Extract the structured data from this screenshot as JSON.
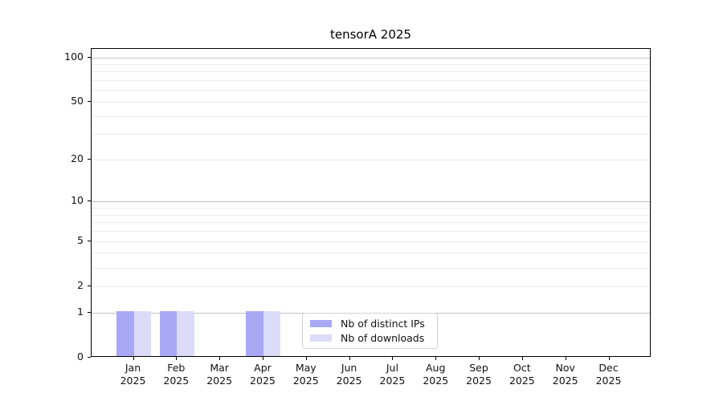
{
  "title": "tensorA 2025",
  "colors": {
    "series_distinct_ips": "#a8a8f5",
    "series_downloads": "#dcdcf8",
    "major_grid": "#c3c3c3",
    "minor_grid": "#ebebeb",
    "axis_frame": "#000000",
    "text": "#111111"
  },
  "chart_data": {
    "type": "bar",
    "title": "tensorA 2025",
    "categories": [
      "Jan",
      "Feb",
      "Mar",
      "Apr",
      "May",
      "Jun",
      "Jul",
      "Aug",
      "Sep",
      "Oct",
      "Nov",
      "Dec"
    ],
    "category_year": "2025",
    "series": [
      {
        "name": "Nb of distinct IPs",
        "color": "#a8a8f5",
        "values": [
          1,
          1,
          0,
          1,
          0,
          0,
          0,
          0,
          0,
          0,
          0,
          0
        ]
      },
      {
        "name": "Nb of downloads",
        "color": "#dcdcf8",
        "values": [
          1,
          1,
          0,
          1,
          0,
          0,
          0,
          0,
          0,
          0,
          0,
          0
        ]
      }
    ],
    "xlabel": "",
    "ylabel": "",
    "yscale": "log1p",
    "ylim": [
      0,
      114
    ],
    "yticks": [
      0,
      1,
      2,
      5,
      10,
      20,
      50,
      100
    ],
    "major_gridlines": [
      1,
      10,
      100
    ],
    "minor_gridlines": [
      2,
      3,
      4,
      5,
      6,
      7,
      8,
      9,
      20,
      30,
      40,
      50,
      60,
      70,
      80,
      90
    ],
    "grid": true,
    "legend_position": "bottom-center-inside"
  }
}
